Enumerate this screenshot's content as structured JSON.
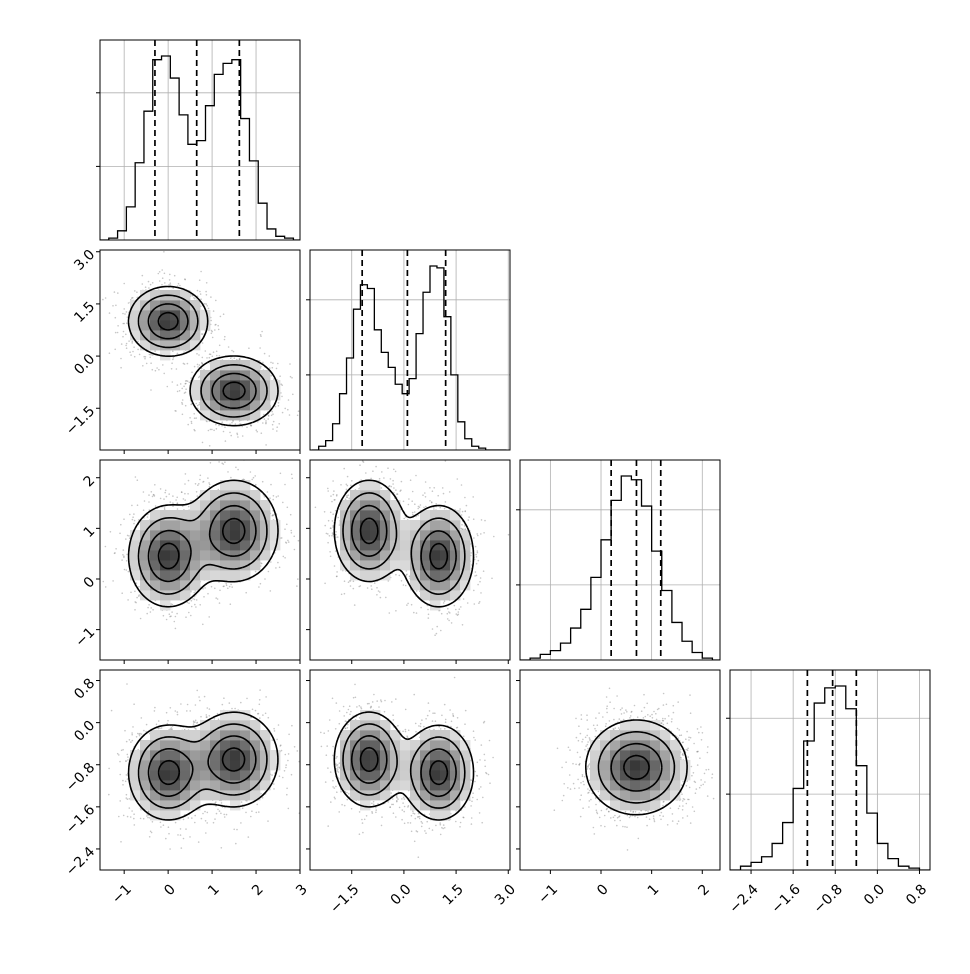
{
  "chart_data": {
    "type": "corner",
    "dims": [
      {
        "id": "p0",
        "range": [
          -1.55,
          3.0
        ],
        "ticks": [
          -1,
          0,
          1,
          2,
          3
        ],
        "tick_labels": [
          "−1",
          "0",
          "1",
          "2",
          "3"
        ],
        "quantiles": [
          -0.3,
          0.65,
          1.62
        ],
        "hist_x": [
          -1.45,
          -1.25,
          -1.05,
          -0.85,
          -0.65,
          -0.45,
          -0.25,
          -0.05,
          0.15,
          0.35,
          0.55,
          0.75,
          0.95,
          1.15,
          1.35,
          1.55,
          1.75,
          1.95,
          2.15,
          2.35,
          2.55,
          2.75,
          2.95
        ],
        "hist_y": [
          0.0,
          0.01,
          0.05,
          0.18,
          0.42,
          0.7,
          0.98,
          1.0,
          0.88,
          0.68,
          0.52,
          0.54,
          0.73,
          0.9,
          0.96,
          0.98,
          0.66,
          0.43,
          0.2,
          0.06,
          0.02,
          0.01,
          0.0
        ]
      },
      {
        "id": "p1",
        "range": [
          -2.7,
          3.05
        ],
        "ticks": [
          -1.5,
          0.0,
          1.5,
          3.0
        ],
        "tick_labels": [
          "−1.5",
          "0.0",
          "1.5",
          "3.0"
        ],
        "quantiles": [
          -1.2,
          0.1,
          1.2
        ],
        "hist_x": [
          -2.55,
          -2.35,
          -2.15,
          -1.95,
          -1.75,
          -1.55,
          -1.35,
          -1.15,
          -0.95,
          -0.75,
          -0.55,
          -0.35,
          -0.15,
          0.05,
          0.25,
          0.45,
          0.65,
          0.85,
          1.05,
          1.25,
          1.45,
          1.65,
          1.85,
          2.05,
          2.25,
          2.45,
          2.65,
          2.85
        ],
        "hist_y": [
          0.0,
          0.02,
          0.05,
          0.14,
          0.3,
          0.49,
          0.75,
          0.88,
          0.86,
          0.64,
          0.52,
          0.44,
          0.35,
          0.3,
          0.38,
          0.62,
          0.84,
          0.98,
          0.97,
          0.71,
          0.4,
          0.15,
          0.06,
          0.02,
          0.01,
          0.0,
          0.0,
          0.0
        ]
      },
      {
        "id": "p2",
        "range": [
          -1.6,
          2.35
        ],
        "ticks": [
          -1,
          0,
          1,
          2
        ],
        "tick_labels": [
          "−1",
          "0",
          "1",
          "2"
        ],
        "quantiles": [
          0.2,
          0.7,
          1.18
        ],
        "hist_x": [
          -1.5,
          -1.3,
          -1.1,
          -0.9,
          -0.7,
          -0.5,
          -0.3,
          -0.1,
          0.1,
          0.3,
          0.5,
          0.7,
          0.9,
          1.1,
          1.3,
          1.5,
          1.7,
          1.9,
          2.1,
          2.3
        ],
        "hist_y": [
          0.0,
          0.01,
          0.03,
          0.05,
          0.09,
          0.17,
          0.27,
          0.44,
          0.64,
          0.85,
          0.98,
          0.96,
          0.82,
          0.58,
          0.37,
          0.2,
          0.1,
          0.04,
          0.01,
          0.0
        ]
      },
      {
        "id": "p3",
        "range": [
          -2.8,
          1.0
        ],
        "ticks": [
          -2.4,
          -1.6,
          -0.8,
          0.0,
          0.8
        ],
        "tick_labels": [
          "−2.4",
          "−1.6",
          "−0.8",
          "0.0",
          "0.8"
        ],
        "quantiles": [
          -1.33,
          -0.85,
          -0.4
        ],
        "hist_x": [
          -2.7,
          -2.5,
          -2.3,
          -2.1,
          -1.9,
          -1.7,
          -1.5,
          -1.3,
          -1.1,
          -0.9,
          -0.7,
          -0.5,
          -0.3,
          -0.1,
          0.1,
          0.3,
          0.5,
          0.7,
          0.9
        ],
        "hist_y": [
          0.0,
          0.02,
          0.04,
          0.07,
          0.14,
          0.25,
          0.43,
          0.68,
          0.88,
          0.96,
          0.97,
          0.85,
          0.55,
          0.3,
          0.14,
          0.06,
          0.02,
          0.01,
          0.0
        ]
      }
    ],
    "pairs": [
      {
        "row": 1,
        "col": 0,
        "mode_weights": [
          0.5,
          0.5
        ],
        "modes": [
          {
            "mx": 0.0,
            "my": 1.0,
            "sx": 0.45,
            "sy": 0.5,
            "rho": 0.0
          },
          {
            "mx": 1.5,
            "my": -1.0,
            "sx": 0.5,
            "sy": 0.5,
            "rho": 0.0
          }
        ]
      },
      {
        "row": 2,
        "col": 0,
        "mode_weights": [
          0.5,
          0.5
        ],
        "modes": [
          {
            "mx": 0.0,
            "my": 0.45,
            "sx": 0.45,
            "sy": 0.5,
            "rho": 0.0
          },
          {
            "mx": 1.5,
            "my": 0.95,
            "sx": 0.5,
            "sy": 0.5,
            "rho": 0.0
          }
        ]
      },
      {
        "row": 2,
        "col": 1,
        "mode_weights": [
          0.5,
          0.5
        ],
        "modes": [
          {
            "mx": -1.0,
            "my": 0.95,
            "sx": 0.5,
            "sy": 0.5,
            "rho": 0.0
          },
          {
            "mx": 1.0,
            "my": 0.45,
            "sx": 0.5,
            "sy": 0.5,
            "rho": 0.0
          }
        ]
      },
      {
        "row": 3,
        "col": 0,
        "mode_weights": [
          0.5,
          0.5
        ],
        "modes": [
          {
            "mx": 0.0,
            "my": -0.95,
            "sx": 0.45,
            "sy": 0.45,
            "rho": 0.0
          },
          {
            "mx": 1.5,
            "my": -0.7,
            "sx": 0.5,
            "sy": 0.45,
            "rho": 0.0
          }
        ]
      },
      {
        "row": 3,
        "col": 1,
        "mode_weights": [
          0.5,
          0.5
        ],
        "modes": [
          {
            "mx": -1.0,
            "my": -0.7,
            "sx": 0.5,
            "sy": 0.45,
            "rho": 0.0
          },
          {
            "mx": 1.0,
            "my": -0.95,
            "sx": 0.5,
            "sy": 0.45,
            "rho": 0.0
          }
        ]
      },
      {
        "row": 3,
        "col": 2,
        "mode_weights": [
          1.0
        ],
        "modes": [
          {
            "mx": 0.7,
            "my": -0.85,
            "sx": 0.5,
            "sy": 0.45,
            "rho": 0.0
          }
        ]
      }
    ],
    "contour_levels_sigma": [
      0.5,
      1.0,
      1.5,
      2.0
    ],
    "grid": true,
    "quantile_line_style": "dashed",
    "colors": {
      "line": "#000000",
      "grid": "#b0b0b0",
      "points": "#808080"
    }
  }
}
